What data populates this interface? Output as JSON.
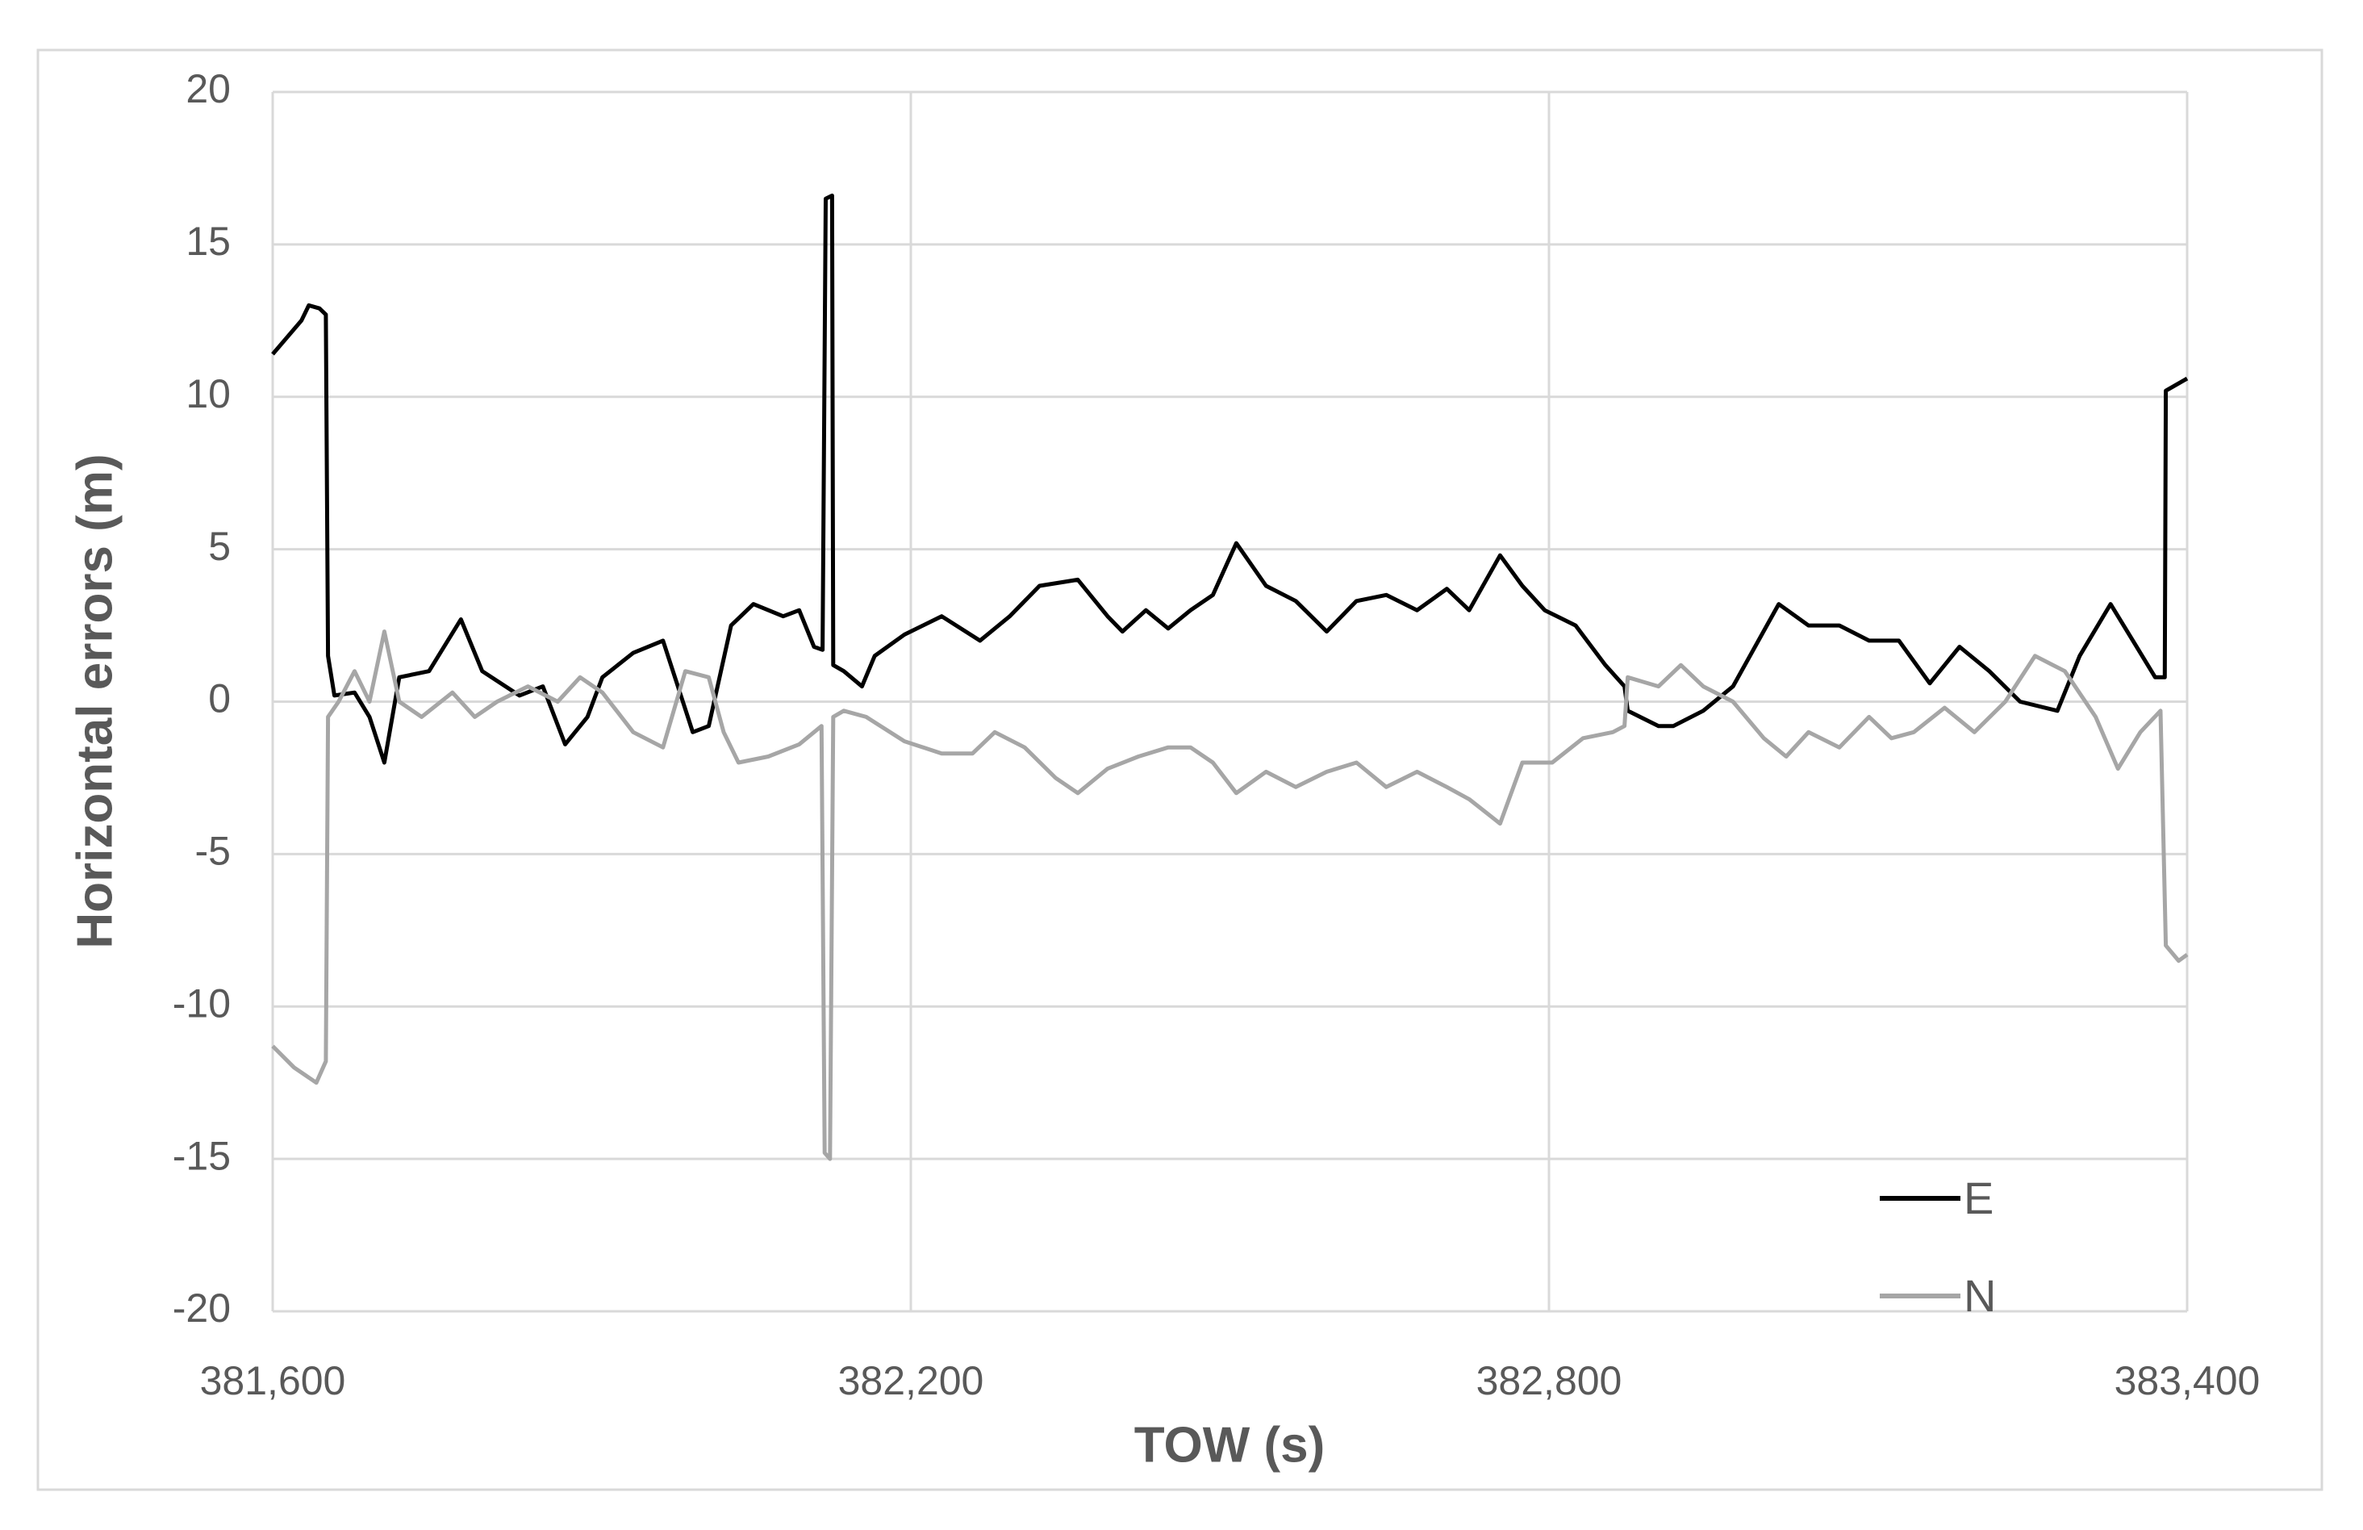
{
  "chart_data": {
    "type": "line",
    "x_label": "TOW (s)",
    "y_label": "Horizontal errors (m)",
    "xlim": [
      381600,
      383400
    ],
    "xticks": [
      {
        "value": 381600,
        "label": "381,600"
      },
      {
        "value": 382200,
        "label": "382,200"
      },
      {
        "value": 382800,
        "label": "382,800"
      },
      {
        "value": 383400,
        "label": "383,400"
      }
    ],
    "ylim": [
      -20,
      20
    ],
    "yticks": [
      -20,
      -15,
      -10,
      -5,
      0,
      5,
      10,
      15,
      20
    ],
    "grid": true,
    "legend": "lower right",
    "series": [
      {
        "name": "E",
        "color": "#000000",
        "x": [
          381600,
          381627,
          381634,
          381644,
          381650,
          381652,
          381658,
          381677,
          381691,
          381705,
          381719,
          381747,
          381777,
          381797,
          381832,
          381854,
          381875,
          381896,
          381910,
          381939,
          381967,
          381981,
          381995,
          382010,
          382031,
          382052,
          382080,
          382095,
          382109,
          382117,
          382120,
          382126,
          382127,
          382137,
          382154,
          382166,
          382194,
          382229,
          382265,
          382293,
          382321,
          382357,
          382385,
          382399,
          382421,
          382442,
          382463,
          382484,
          382506,
          382534,
          382562,
          382591,
          382619,
          382647,
          382676,
          382704,
          382725,
          382754,
          382775,
          382796,
          382825,
          382853,
          382871,
          382874,
          382903,
          382917,
          382945,
          382973,
          383016,
          383044,
          383073,
          383101,
          383129,
          383158,
          383186,
          383214,
          383243,
          383278,
          383299,
          383328,
          383349,
          383370,
          383379,
          383380,
          383400
        ],
        "values": [
          11.4,
          12.5,
          13.0,
          12.9,
          12.7,
          1.5,
          0.2,
          0.3,
          -0.5,
          -2.0,
          0.8,
          1.0,
          2.7,
          1.0,
          0.2,
          0.5,
          -1.4,
          -0.5,
          0.8,
          1.6,
          2.0,
          0.5,
          -1.0,
          -0.8,
          2.5,
          3.2,
          2.8,
          3.0,
          1.8,
          1.7,
          16.5,
          16.6,
          1.2,
          1.0,
          0.5,
          1.5,
          2.2,
          2.8,
          2.0,
          2.8,
          3.8,
          4.0,
          2.8,
          2.3,
          3.0,
          2.4,
          3.0,
          3.5,
          5.2,
          3.8,
          3.3,
          2.3,
          3.3,
          3.5,
          3.0,
          3.7,
          3.0,
          4.8,
          3.8,
          3.0,
          2.5,
          1.2,
          0.5,
          -0.3,
          -0.8,
          -0.8,
          -0.3,
          0.5,
          3.2,
          2.5,
          2.5,
          2.0,
          2.0,
          0.6,
          1.8,
          1.0,
          0.0,
          -0.3,
          1.5,
          3.2,
          2.0,
          0.8,
          0.8,
          10.2,
          10.6
        ]
      },
      {
        "name": "N",
        "color": "#a6a6a6",
        "x": [
          381600,
          381620,
          381641,
          381650,
          381652,
          381662,
          381677,
          381691,
          381705,
          381719,
          381740,
          381769,
          381790,
          381811,
          381840,
          381868,
          381889,
          381910,
          381939,
          381967,
          381988,
          382010,
          382024,
          382038,
          382066,
          382095,
          382116,
          382119,
          382124,
          382127,
          382137,
          382158,
          382194,
          382229,
          382258,
          382279,
          382307,
          382336,
          382357,
          382385,
          382414,
          382442,
          382463,
          382484,
          382506,
          382534,
          382562,
          382591,
          382619,
          382647,
          382676,
          382704,
          382725,
          382754,
          382775,
          382803,
          382832,
          382860,
          382871,
          382874,
          382903,
          382924,
          382945,
          382973,
          383002,
          383023,
          383044,
          383073,
          383101,
          383122,
          383143,
          383172,
          383200,
          383229,
          383257,
          383285,
          383314,
          383335,
          383356,
          383375,
          383380,
          383392,
          383400
        ],
        "values": [
          -11.3,
          -12.0,
          -12.5,
          -11.8,
          -0.5,
          0.0,
          1.0,
          0.0,
          2.3,
          0.0,
          -0.5,
          0.3,
          -0.5,
          0.0,
          0.5,
          0.0,
          0.8,
          0.3,
          -1.0,
          -1.5,
          1.0,
          0.8,
          -1.0,
          -2.0,
          -1.8,
          -1.4,
          -0.8,
          -14.8,
          -15.0,
          -0.5,
          -0.3,
          -0.5,
          -1.3,
          -1.7,
          -1.7,
          -1.0,
          -1.5,
          -2.5,
          -3.0,
          -2.2,
          -1.8,
          -1.5,
          -1.5,
          -2.0,
          -3.0,
          -2.3,
          -2.8,
          -2.3,
          -2.0,
          -2.8,
          -2.3,
          -2.8,
          -3.2,
          -4.0,
          -2.0,
          -2.0,
          -1.2,
          -1.0,
          -0.8,
          0.8,
          0.5,
          1.2,
          0.5,
          0.0,
          -1.2,
          -1.8,
          -1.0,
          -1.5,
          -0.5,
          -1.2,
          -1.0,
          -0.2,
          -1.0,
          0.0,
          1.5,
          1.0,
          -0.5,
          -2.2,
          -1.0,
          -0.3,
          -8.0,
          -8.5,
          -8.3
        ]
      }
    ]
  }
}
